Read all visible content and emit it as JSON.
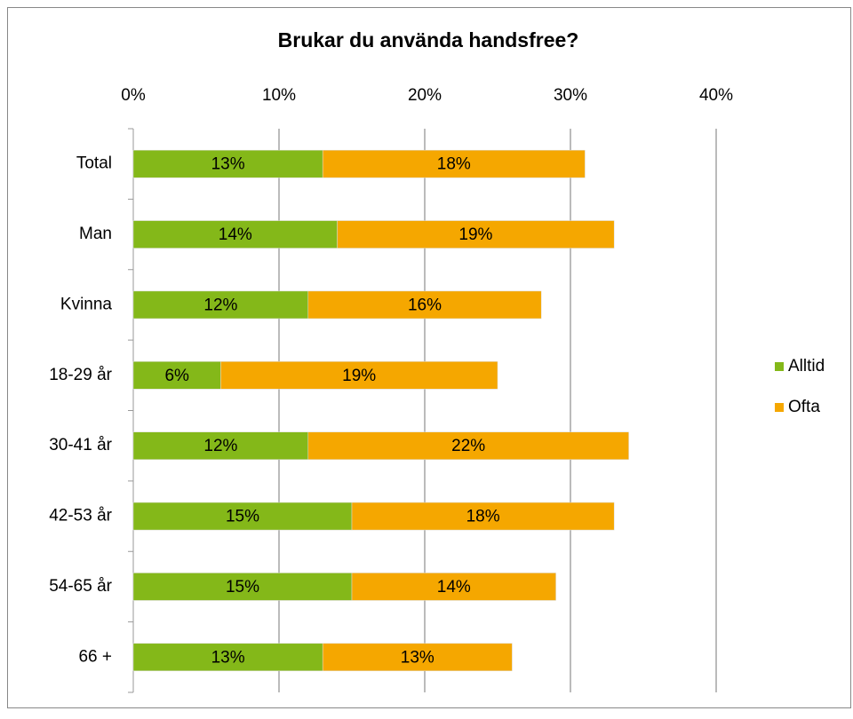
{
  "chart_data": {
    "type": "stacked-bar-horizontal",
    "title": "Brukar du använda handsfree?",
    "categories": [
      "Total",
      "Man",
      "Kvinna",
      "18-29 år",
      "30-41 år",
      "42-53 år",
      "54-65 år",
      "66 +"
    ],
    "series": [
      {
        "name": "Alltid",
        "color": "#84b819",
        "values": [
          13,
          14,
          12,
          6,
          12,
          15,
          15,
          13
        ],
        "value_labels": [
          "13%",
          "14%",
          "12%",
          "6%",
          "12%",
          "15%",
          "15%",
          "13%"
        ]
      },
      {
        "name": "Ofta",
        "color": "#f5a700",
        "values": [
          18,
          19,
          16,
          19,
          22,
          18,
          14,
          13
        ],
        "value_labels": [
          "18%",
          "19%",
          "16%",
          "19%",
          "22%",
          "18%",
          "14%",
          "13%"
        ]
      }
    ],
    "xlim": [
      0,
      40
    ],
    "xticks": [
      {
        "value": 0,
        "label": "0%"
      },
      {
        "value": 10,
        "label": "10%"
      },
      {
        "value": 20,
        "label": "20%"
      },
      {
        "value": 30,
        "label": "30%"
      },
      {
        "value": 40,
        "label": "40%"
      }
    ],
    "grid": true,
    "legend": "right"
  }
}
